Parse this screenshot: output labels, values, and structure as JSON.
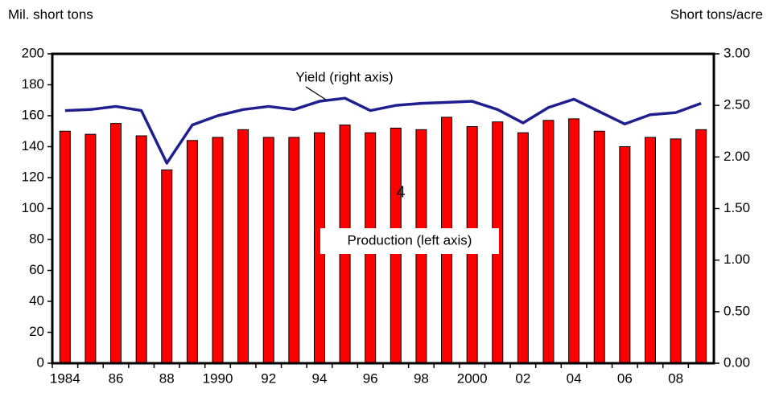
{
  "chart_data": {
    "type": "bar",
    "y_label": "Mil. short tons",
    "y2_label": "Short tons/acre",
    "categories": [
      "1984",
      null,
      "86",
      null,
      "88",
      null,
      "1990",
      null,
      "92",
      null,
      "94",
      null,
      "96",
      null,
      "98",
      null,
      "2000",
      null,
      "02",
      null,
      "04",
      null,
      "06",
      null,
      "08",
      null
    ],
    "series": [
      {
        "name": "Production (left axis)",
        "type": "bar",
        "color": "#ff0000",
        "values": [
          150,
          148,
          155,
          147,
          125,
          144,
          146,
          151,
          146,
          146,
          149,
          154,
          149,
          152,
          151,
          159,
          153,
          156,
          149,
          157,
          158,
          150,
          140,
          146,
          145,
          151
        ]
      },
      {
        "name": "Yield (right axis)",
        "type": "line",
        "color": "#1f1f8f",
        "axis": "y2",
        "values": [
          2.45,
          2.46,
          2.49,
          2.45,
          1.94,
          2.31,
          2.4,
          2.46,
          2.49,
          2.46,
          2.54,
          2.57,
          2.45,
          2.5,
          2.52,
          2.53,
          2.54,
          2.46,
          2.33,
          2.48,
          2.56,
          2.44,
          2.32,
          2.41,
          2.43,
          2.52
        ]
      }
    ],
    "annotations": [
      "4"
    ],
    "ylim": [
      0,
      200
    ],
    "yticks": [
      0,
      20,
      40,
      60,
      80,
      100,
      120,
      140,
      160,
      180,
      200
    ],
    "y2lim": [
      0,
      3
    ],
    "y2ticks": [
      {
        "value": 0,
        "label": "0.00"
      },
      {
        "value": 0.5,
        "label": "0.50"
      },
      {
        "value": 1,
        "label": "1.00"
      },
      {
        "value": 1.5,
        "label": "1.50"
      },
      {
        "value": 2,
        "label": "2.00"
      },
      {
        "value": 2.5,
        "label": "2.50"
      },
      {
        "value": 3,
        "label": "3.00"
      }
    ]
  }
}
